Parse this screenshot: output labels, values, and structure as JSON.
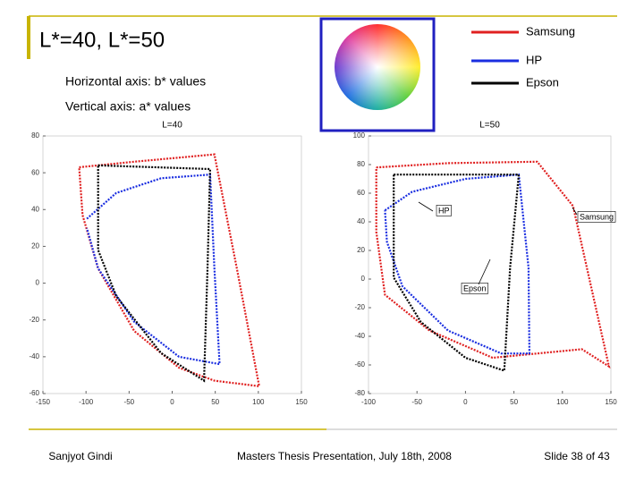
{
  "slide": {
    "title": "L*=40, L*=50",
    "notes": [
      "Horizontal axis: b* values",
      "Vertical axis: a* values"
    ],
    "footer": {
      "author": "Sanjyot Gindi",
      "event": "Masters Thesis Presentation, July 18th, 2008",
      "page": "Slide 38 of 43"
    }
  },
  "chart_data": [
    {
      "type": "line",
      "title": "L=40",
      "xlim": [
        -150,
        150
      ],
      "xticks": [
        -150,
        -100,
        -50,
        0,
        50,
        100,
        150
      ],
      "ylim": [
        -60,
        80
      ],
      "yticks": [
        -60,
        -40,
        -20,
        0,
        20,
        40,
        60,
        80
      ],
      "series": [
        {
          "name": "Samsung",
          "color": "#e02020",
          "x": [
            -108,
            -44,
            49,
            75,
            101,
            49,
            8,
            -44,
            -86,
            -104,
            -108
          ],
          "values": [
            63,
            66,
            70,
            8,
            -56,
            -53,
            -46,
            -26,
            8,
            37,
            63
          ]
        },
        {
          "name": "HP",
          "color": "#1a2ee0",
          "x": [
            -99,
            -65,
            -13,
            44,
            49,
            55,
            8,
            -44,
            -86,
            -99
          ],
          "values": [
            35,
            49,
            57,
            59,
            8,
            -44,
            -40,
            -21,
            8,
            30
          ]
        },
        {
          "name": "Epson",
          "color": "#000000",
          "x": [
            -86,
            44,
            41,
            37,
            -13,
            -65,
            -86,
            -86
          ],
          "values": [
            64,
            62,
            8,
            -53,
            -38,
            -7,
            18,
            64
          ]
        }
      ]
    },
    {
      "type": "line",
      "title": "L=50",
      "xlim": [
        -100,
        150
      ],
      "xticks": [
        -100,
        -50,
        0,
        50,
        100,
        150
      ],
      "ylim": [
        -80,
        100
      ],
      "yticks": [
        -80,
        -60,
        -40,
        -20,
        0,
        20,
        40,
        60,
        80,
        100
      ],
      "annotations": [
        "Samsung",
        "HP",
        "Epson"
      ],
      "series": [
        {
          "name": "Samsung",
          "color": "#e02020",
          "x": [
            -92,
            -18,
            74,
            111,
            148,
            120,
            28,
            -37,
            -83,
            -92,
            -92
          ],
          "values": [
            78,
            81,
            82,
            51,
            -61,
            -49,
            -55,
            -36,
            -11,
            33,
            78
          ]
        },
        {
          "name": "HP",
          "color": "#1a2ee0",
          "x": [
            -83,
            -55,
            0,
            55,
            65,
            66,
            37,
            -18,
            -65,
            -81,
            -83
          ],
          "values": [
            48,
            61,
            70,
            73,
            8,
            -52,
            -52,
            -36,
            -5,
            26,
            48
          ]
        },
        {
          "name": "Epson",
          "color": "#000000",
          "x": [
            -74,
            55,
            46,
            40,
            0,
            -46,
            -74,
            -74,
            -74
          ],
          "values": [
            73,
            73,
            8,
            -64,
            -55,
            -30,
            1,
            39,
            73
          ]
        }
      ]
    }
  ]
}
